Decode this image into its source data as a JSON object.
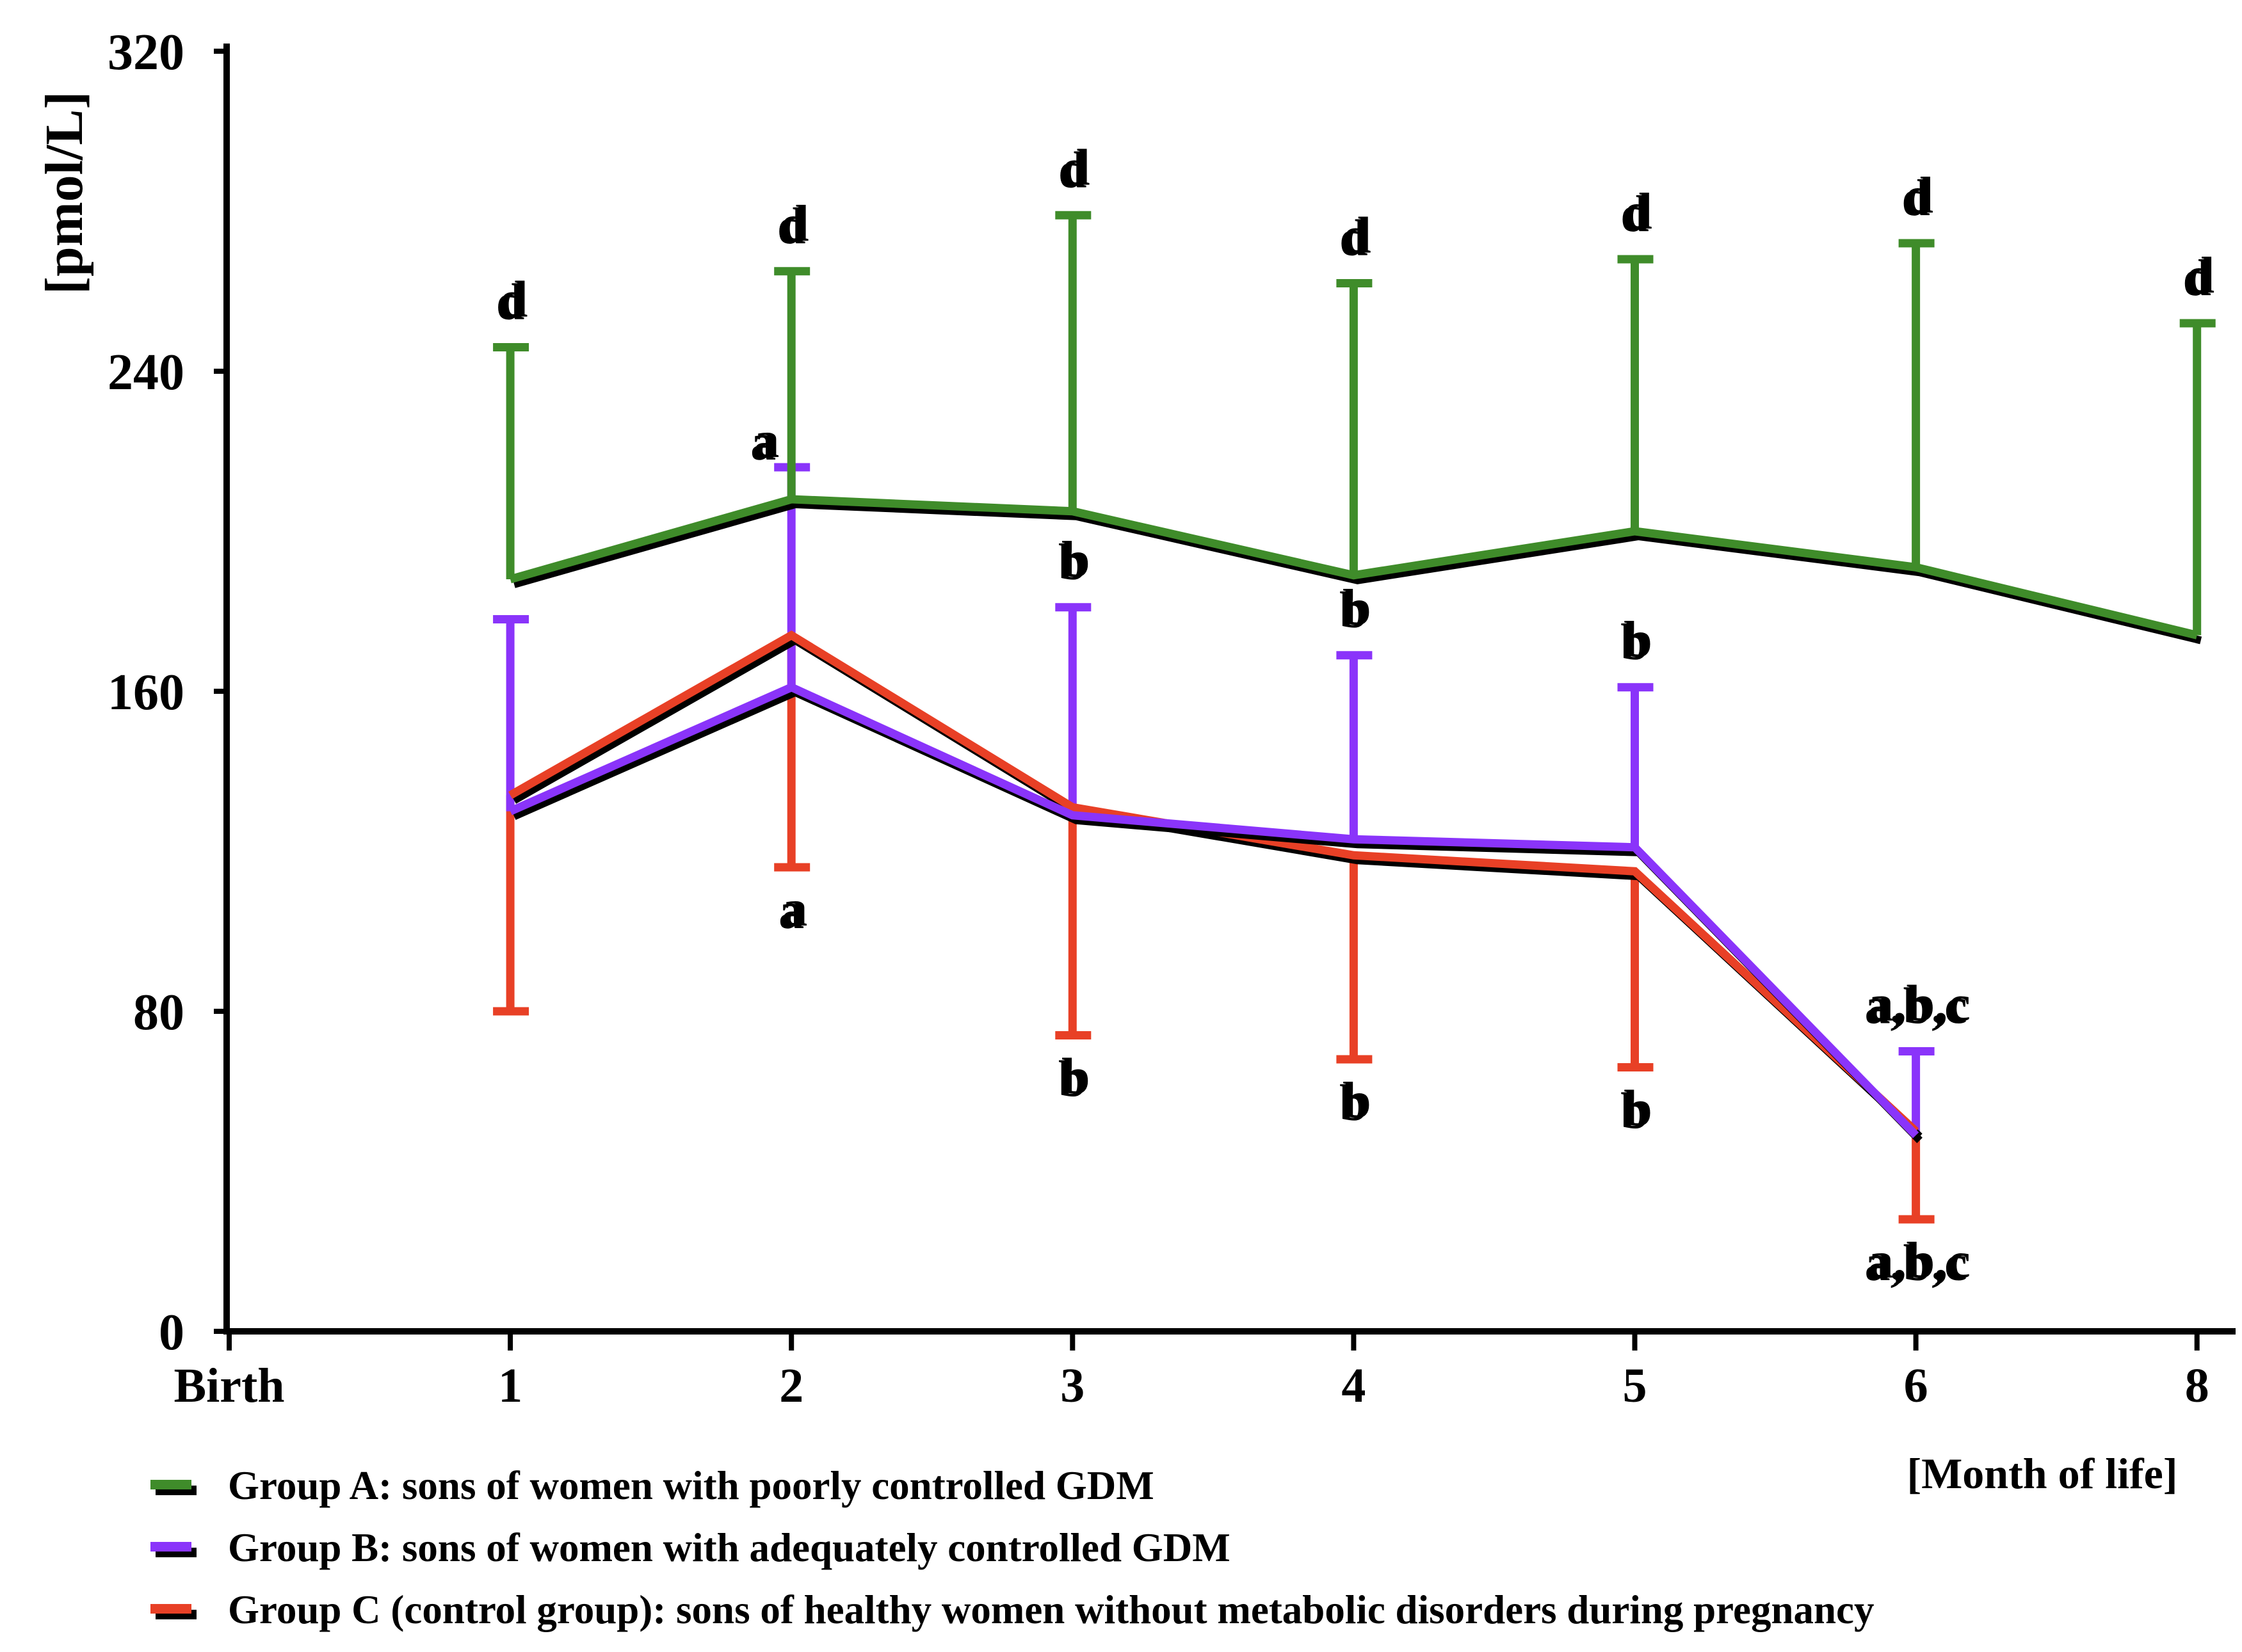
{
  "chart_data": {
    "type": "line",
    "title": "",
    "ylabel": "[pmol/L]",
    "xlabel": "[Month of life]",
    "ylim": [
      0,
      320
    ],
    "yticks": [
      0,
      80,
      160,
      240,
      320
    ],
    "ytick_labels": [
      "0",
      "80",
      "160",
      "240",
      "320"
    ],
    "x_categories": [
      "Birth",
      "1",
      "2",
      "3",
      "4",
      "5",
      "6",
      "8"
    ],
    "grid": false,
    "legend_position": "bottom-left",
    "series": [
      {
        "name": "Group A: sons of women with poorly controlled GDM",
        "color": "#3f8c2a",
        "x": [
          "1",
          "2",
          "3",
          "4",
          "5",
          "6",
          "8"
        ],
        "values": [
          188,
          208,
          205,
          189,
          200,
          191,
          174
        ],
        "error_direction": "up",
        "error_caps": [
          246,
          265,
          279,
          262,
          268,
          272,
          252
        ],
        "sig_labels": [
          "d",
          "d",
          "d",
          "d",
          "d",
          "d",
          "d"
        ],
        "sig_position": "above"
      },
      {
        "name": "Group B: sons of women with adequately controlled GDM",
        "color": "#8a34fa",
        "x": [
          "1",
          "2",
          "3",
          "4",
          "5",
          "6"
        ],
        "values": [
          130,
          161,
          129,
          123,
          121,
          49
        ],
        "error_direction": "up",
        "error_caps": [
          178,
          216,
          181,
          169,
          161,
          70
        ],
        "sig_labels": [
          "",
          "a",
          "b",
          "b",
          "b",
          "a,b,c"
        ],
        "sig_position": "above"
      },
      {
        "name": "Group C (control group): sons of healthy women without metabolic disorders during pregnancy",
        "color": "#e84026",
        "x": [
          "1",
          "2",
          "3",
          "4",
          "5",
          "6"
        ],
        "values": [
          134,
          174,
          131,
          119,
          115,
          50
        ],
        "error_direction": "down",
        "error_caps": [
          80,
          116,
          74,
          68,
          66,
          28
        ],
        "sig_labels": [
          "",
          "a",
          "b",
          "b",
          "b",
          "a,b,c"
        ],
        "sig_position": "below"
      }
    ]
  }
}
